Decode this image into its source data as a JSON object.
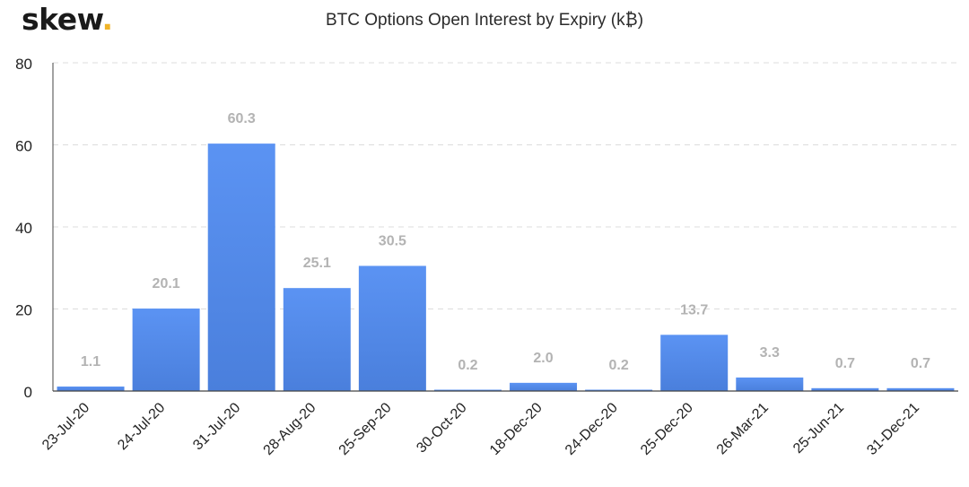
{
  "brand": {
    "name": "skew",
    "dot": ".",
    "dot_color": "#f0b429"
  },
  "chart_data": {
    "type": "bar",
    "title": "BTC Options Open Interest by Expiry (k₿)",
    "categories": [
      "23-Jul-20",
      "24-Jul-20",
      "31-Jul-20",
      "28-Aug-20",
      "25-Sep-20",
      "30-Oct-20",
      "18-Dec-20",
      "24-Dec-20",
      "25-Dec-20",
      "26-Mar-21",
      "25-Jun-21",
      "31-Dec-21"
    ],
    "values": [
      1.1,
      20.1,
      60.3,
      25.1,
      30.5,
      0.2,
      2.0,
      0.2,
      13.7,
      3.3,
      0.7,
      0.7
    ],
    "data_labels": [
      "1.1",
      "20.1",
      "60.3",
      "25.1",
      "30.5",
      "0.2",
      "2.0",
      "0.2",
      "13.7",
      "3.3",
      "0.7",
      "0.7"
    ],
    "ylim": [
      0,
      80
    ],
    "yticks": [
      "0",
      "20",
      "40",
      "60",
      "80"
    ],
    "grid": true,
    "bar_color_top": "#5b93f3",
    "bar_color_bottom": "#4a7fdc",
    "label_color": "#b3b3b3"
  }
}
